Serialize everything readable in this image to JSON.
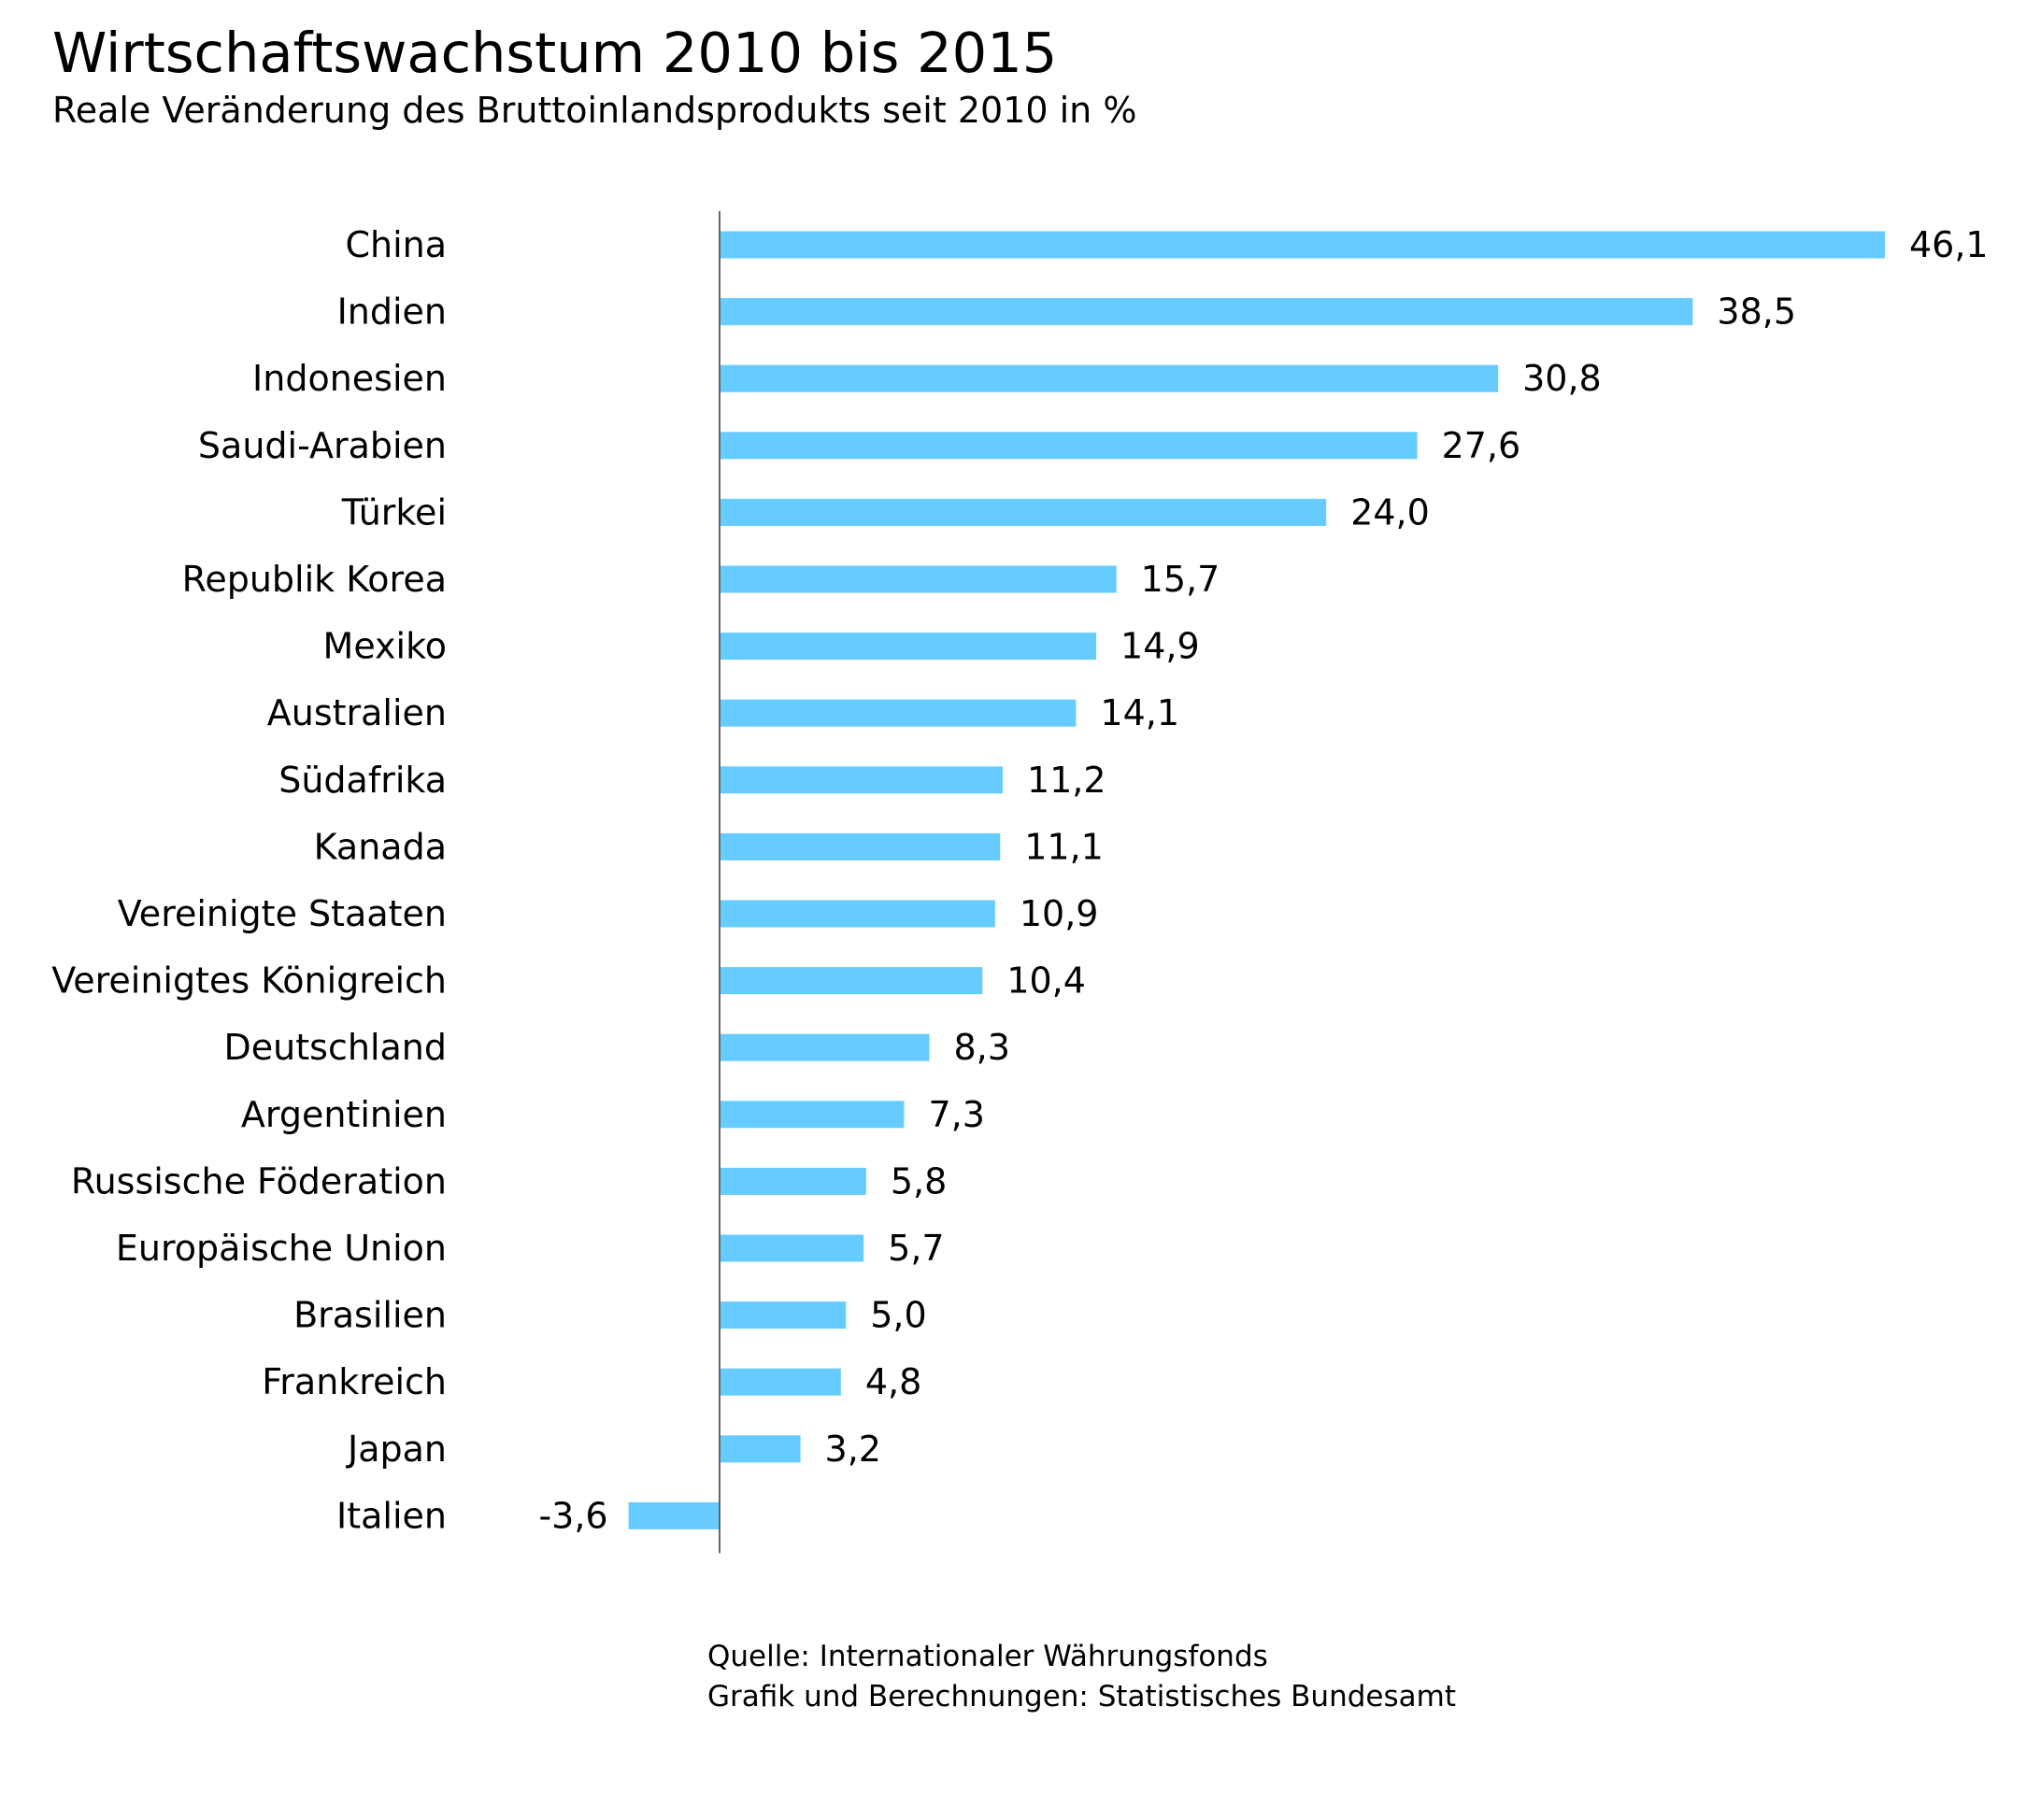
{
  "chart_data": {
    "type": "bar",
    "orientation": "horizontal",
    "title": "Wirtschaftswachstum 2010 bis 2015",
    "subtitle": "Reale Veränderung des Bruttoinlandsprodukts seit 2010 in %",
    "categories": [
      "China",
      "Indien",
      "Indonesien",
      "Saudi-Arabien",
      "Türkei",
      "Republik Korea",
      "Mexiko",
      "Australien",
      "Südafrika",
      "Kanada",
      "Vereinigte Staaten",
      "Vereinigtes Königreich",
      "Deutschland",
      "Argentinien",
      "Russische Föderation",
      "Europäische Union",
      "Brasilien",
      "Frankreich",
      "Japan",
      "Italien"
    ],
    "values": [
      46.1,
      38.5,
      30.8,
      27.6,
      24.0,
      15.7,
      14.9,
      14.1,
      11.2,
      11.1,
      10.9,
      10.4,
      8.3,
      7.3,
      5.8,
      5.7,
      5.0,
      4.8,
      3.2,
      -3.6
    ],
    "value_labels": [
      "46,1",
      "38,5",
      "30,8",
      "27,6",
      "24,0",
      "15,7",
      "14,9",
      "14,1",
      "11,2",
      "11,1",
      "10,9",
      "10,4",
      "8,3",
      "7,3",
      "5,8",
      "5,7",
      "5,0",
      "4,8",
      "3,2",
      "-3,6"
    ],
    "xlabel": "",
    "ylabel": "",
    "grid": false,
    "legend": "none",
    "bar_color": "#66ccff",
    "axis_color": "#666666"
  },
  "footer": {
    "source": "Quelle: Internationaler Währungsfonds",
    "credit": "Grafik und Berechnungen: Statistisches Bundesamt"
  }
}
